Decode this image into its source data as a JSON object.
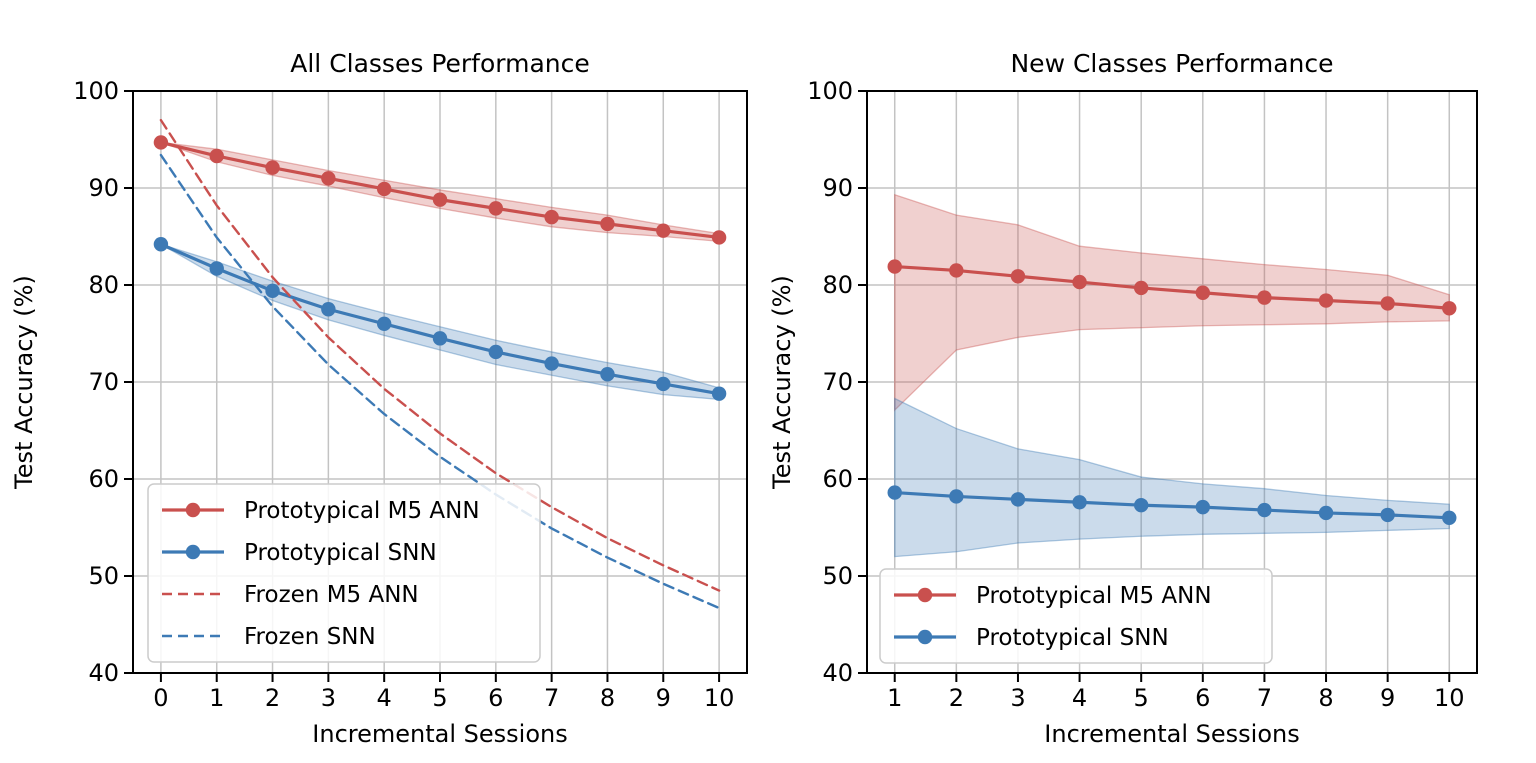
{
  "figure": {
    "background": "#ffffff"
  },
  "colors": {
    "red": "#c9504e",
    "blue": "#3d7ab5",
    "grid": "#c3c3c3",
    "spine": "#000000",
    "legend_border": "#cccccc",
    "legend_fill": "#ffffff"
  },
  "chart_data": [
    {
      "id": "all-classes",
      "type": "line",
      "title": "All Classes Performance",
      "xlabel": "Incremental Sessions",
      "ylabel": "Test Accuracy (%)",
      "x": [
        0,
        1,
        2,
        3,
        4,
        5,
        6,
        7,
        8,
        9,
        10
      ],
      "xticks": [
        0,
        1,
        2,
        3,
        4,
        5,
        6,
        7,
        8,
        9,
        10
      ],
      "yticks": [
        40,
        50,
        60,
        70,
        80,
        90,
        100
      ],
      "xlim": [
        -0.5,
        10.5
      ],
      "ylim": [
        40,
        100
      ],
      "grid": true,
      "legend_position": "lower left",
      "series": [
        {
          "name": "Prototypical M5 ANN",
          "color_key": "red",
          "style": "solid",
          "marker": true,
          "values": [
            94.7,
            93.3,
            92.1,
            91.0,
            89.9,
            88.8,
            87.9,
            87.0,
            86.3,
            85.6,
            84.9
          ],
          "band_upper": [
            94.7,
            94.0,
            92.9,
            91.8,
            90.8,
            89.8,
            88.9,
            88.0,
            87.2,
            86.2,
            85.3
          ],
          "band_lower": [
            94.7,
            92.7,
            91.3,
            90.2,
            89.0,
            87.9,
            86.9,
            86.0,
            85.4,
            85.0,
            84.5
          ]
        },
        {
          "name": "Prototypical SNN",
          "color_key": "blue",
          "style": "solid",
          "marker": true,
          "values": [
            84.2,
            81.7,
            79.4,
            77.5,
            76.0,
            74.5,
            73.1,
            71.9,
            70.8,
            69.8,
            68.8
          ],
          "band_upper": [
            84.2,
            82.4,
            80.4,
            78.6,
            77.1,
            75.7,
            74.3,
            73.1,
            72.0,
            71.0,
            69.4
          ],
          "band_lower": [
            84.2,
            80.9,
            78.4,
            76.4,
            74.8,
            73.3,
            71.8,
            70.7,
            69.6,
            68.7,
            68.2
          ]
        },
        {
          "name": "Frozen M5 ANN",
          "color_key": "red",
          "style": "dashed",
          "marker": false,
          "values": [
            97.0,
            88.2,
            80.8,
            74.6,
            69.3,
            64.7,
            60.6,
            57.1,
            53.9,
            51.1,
            48.5
          ]
        },
        {
          "name": "Frozen SNN",
          "color_key": "blue",
          "style": "dashed",
          "marker": false,
          "values": [
            93.4,
            84.9,
            77.8,
            71.8,
            66.7,
            62.3,
            58.4,
            54.9,
            51.9,
            49.2,
            46.7
          ]
        }
      ]
    },
    {
      "id": "new-classes",
      "type": "line",
      "title": "New Classes Performance",
      "xlabel": "Incremental Sessions",
      "ylabel": "Test Accuracy (%)",
      "x": [
        1,
        2,
        3,
        4,
        5,
        6,
        7,
        8,
        9,
        10
      ],
      "xticks": [
        1,
        2,
        3,
        4,
        5,
        6,
        7,
        8,
        9,
        10
      ],
      "yticks": [
        40,
        50,
        60,
        70,
        80,
        90,
        100
      ],
      "xlim": [
        0.55,
        10.45
      ],
      "ylim": [
        40,
        100
      ],
      "grid": true,
      "legend_position": "lower left",
      "series": [
        {
          "name": "Prototypical M5 ANN",
          "color_key": "red",
          "style": "solid",
          "marker": true,
          "values": [
            81.9,
            81.5,
            80.9,
            80.3,
            79.7,
            79.2,
            78.7,
            78.4,
            78.1,
            77.6
          ],
          "band_upper": [
            89.3,
            87.2,
            86.2,
            84.0,
            83.3,
            82.7,
            82.1,
            81.6,
            81.0,
            79.0
          ],
          "band_lower": [
            67.1,
            73.3,
            74.6,
            75.4,
            75.6,
            75.8,
            75.9,
            76.0,
            76.2,
            76.3
          ]
        },
        {
          "name": "Prototypical SNN",
          "color_key": "blue",
          "style": "solid",
          "marker": true,
          "values": [
            58.6,
            58.2,
            57.9,
            57.6,
            57.3,
            57.1,
            56.8,
            56.5,
            56.3,
            56.0
          ],
          "band_upper": [
            68.3,
            65.2,
            63.1,
            62.0,
            60.2,
            59.5,
            59.0,
            58.3,
            57.8,
            57.4
          ],
          "band_lower": [
            52.0,
            52.5,
            53.4,
            53.8,
            54.1,
            54.3,
            54.4,
            54.5,
            54.7,
            54.9
          ]
        }
      ]
    }
  ]
}
